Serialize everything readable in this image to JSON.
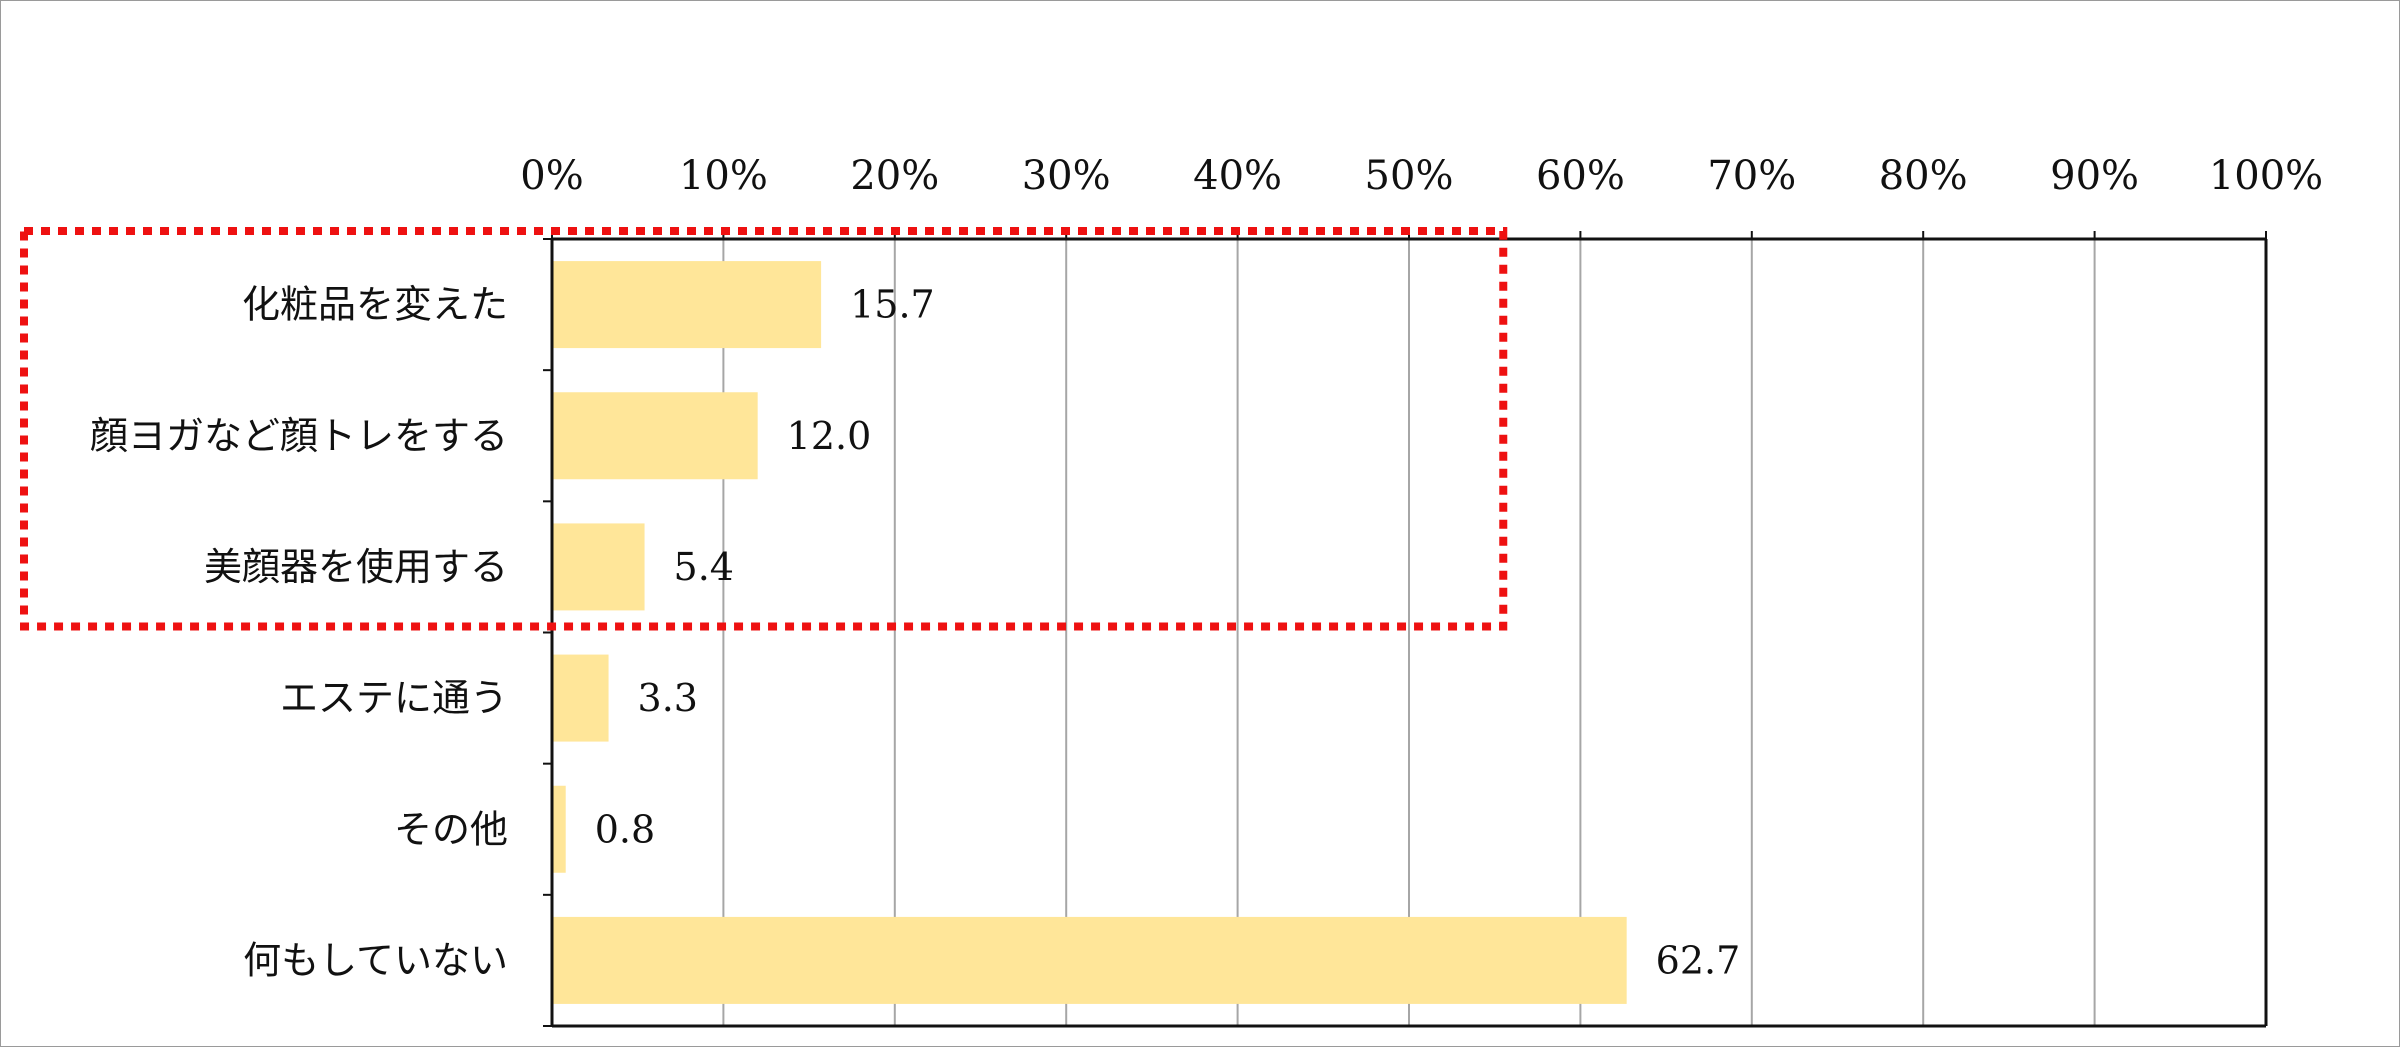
{
  "chart_data": {
    "type": "bar",
    "orientation": "horizontal",
    "categories": [
      "化粧品を変えた",
      "顔ヨガなど顔トレをする",
      "美顔器を使用する",
      "エステに通う",
      "その他",
      "何もしていない"
    ],
    "values": [
      15.7,
      12.0,
      5.4,
      3.3,
      0.8,
      62.7
    ],
    "value_labels": [
      "15.7",
      "12.0",
      "5.4",
      "3.3",
      "0.8",
      "62.7"
    ],
    "xlim": [
      0,
      100
    ],
    "x_ticks": [
      0,
      10,
      20,
      30,
      40,
      50,
      60,
      70,
      80,
      90,
      100
    ],
    "x_tick_labels": [
      "0%",
      "10%",
      "20%",
      "30%",
      "40%",
      "50%",
      "60%",
      "70%",
      "80%",
      "90%",
      "100%"
    ],
    "x_axis_position": "top",
    "grid": "vertical",
    "highlight": {
      "style": "red dotted box",
      "covers_categories": [
        0,
        1,
        2
      ]
    }
  },
  "colors": {
    "bar": "#FFE699",
    "grid": "#a6a6a6",
    "axis": "#111111",
    "highlight": "#ee1111"
  }
}
